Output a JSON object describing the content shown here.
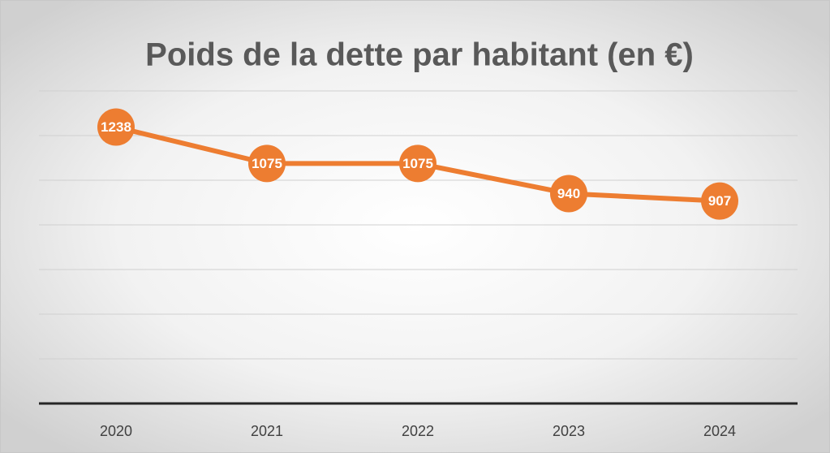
{
  "chart_data": {
    "type": "line",
    "title": "Poids de la dette par habitant (en €)",
    "categories": [
      "2020",
      "2021",
      "2022",
      "2023",
      "2024"
    ],
    "series": [
      {
        "name": "Poids de la dette par habitant",
        "color": "#ed7d31",
        "values": [
          1238,
          1075,
          1075,
          940,
          907
        ]
      }
    ],
    "ylim": [
      0,
      1400
    ],
    "yticks": [
      0,
      200,
      400,
      600,
      800,
      1000,
      1200,
      1400
    ],
    "grid": true,
    "data_labels": true
  }
}
